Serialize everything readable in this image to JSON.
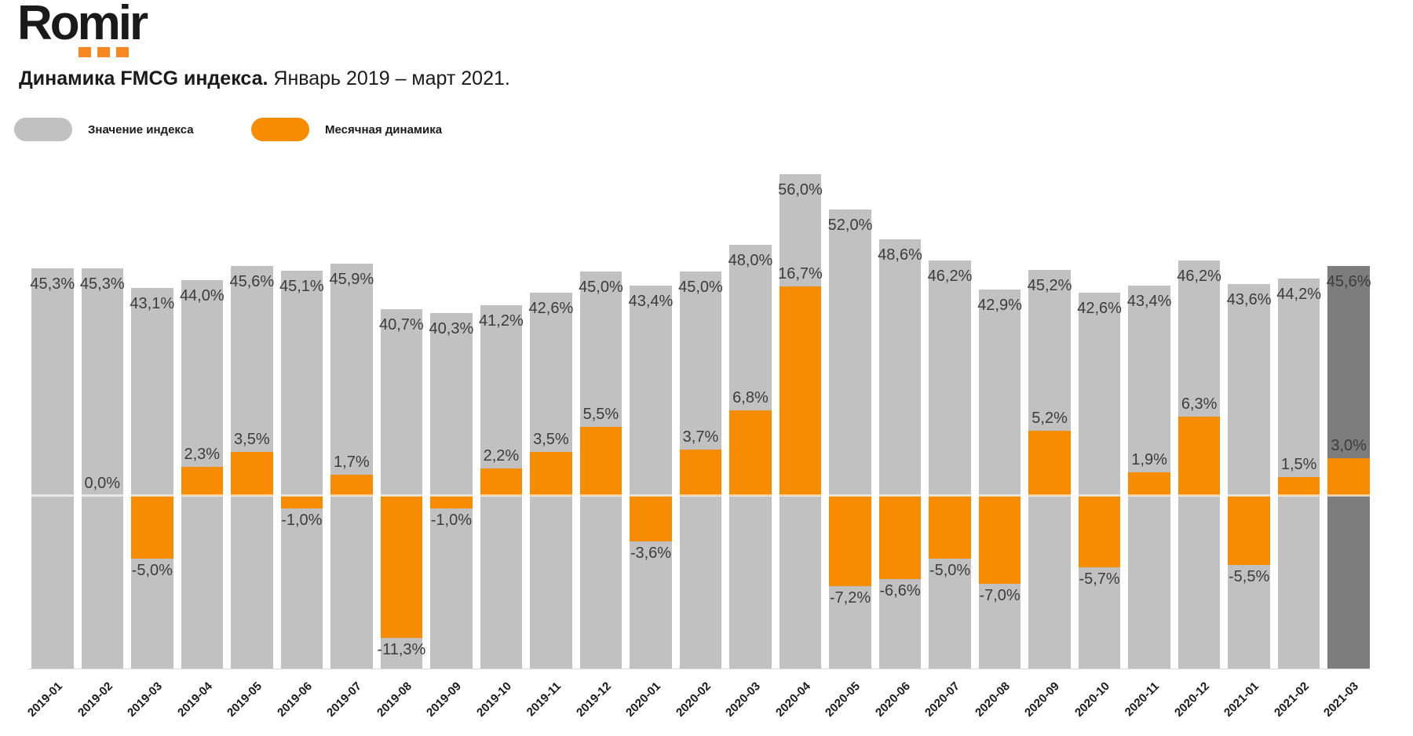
{
  "logo": {
    "text": "Romir",
    "dot_count": 3
  },
  "title": {
    "bold": "Динамика FMCG индекса.",
    "regular": " Январь 2019 – март 2021."
  },
  "legend": {
    "index_label": "Значение индекса",
    "dynamics_label": "Месячная динамика"
  },
  "colors": {
    "bar_gray": "#C1C1C1",
    "bar_highlight": "#7D7D7D",
    "bar_orange": "#F88C00",
    "logo_dots": "#F5891F",
    "value_label": "#3C3C3C",
    "axis_label": "#1A1A1A",
    "baseline": "rgba(255,255,255,0.62)",
    "axis_line": "#D9D9D9"
  },
  "chart_data": {
    "type": "bar",
    "title": "Динамика FMCG индекса. Январь 2019 – март 2021.",
    "categories": [
      "2019-01",
      "2019-02",
      "2019-03",
      "2019-04",
      "2019-05",
      "2019-06",
      "2019-07",
      "2019-08",
      "2019-09",
      "2019-10",
      "2019-11",
      "2019-12",
      "2020-01",
      "2020-02",
      "2020-03",
      "2020-04",
      "2020-05",
      "2020-06",
      "2020-07",
      "2020-08",
      "2020-09",
      "2020-10",
      "2020-11",
      "2020-12",
      "2021-01",
      "2021-02",
      "2021-03"
    ],
    "series": [
      {
        "name": "Значение индекса",
        "values": [
          45.3,
          45.3,
          43.1,
          44.0,
          45.6,
          45.1,
          45.9,
          40.7,
          40.3,
          41.2,
          42.6,
          45.0,
          43.4,
          45.0,
          48.0,
          56.0,
          52.0,
          48.6,
          46.2,
          42.9,
          45.2,
          42.6,
          43.4,
          46.2,
          43.6,
          44.2,
          45.6
        ]
      },
      {
        "name": "Месячная динамика",
        "values": [
          null,
          0.0,
          -5.0,
          2.3,
          3.5,
          -1.0,
          1.7,
          -11.3,
          -1.0,
          2.2,
          3.5,
          5.5,
          -3.6,
          3.7,
          6.8,
          16.7,
          -7.2,
          -6.6,
          -5.0,
          -7.0,
          5.2,
          -5.7,
          1.9,
          6.3,
          -5.5,
          1.5,
          3.0
        ]
      }
    ],
    "highlight_category": "2021-03",
    "label_format": "comma-decimal-percent",
    "axes": {
      "index_axis_max": 59.3,
      "dynamics_axis_range": [
        -13.75,
        27.9
      ],
      "gridlines": false,
      "legend_position": "top-left"
    }
  }
}
